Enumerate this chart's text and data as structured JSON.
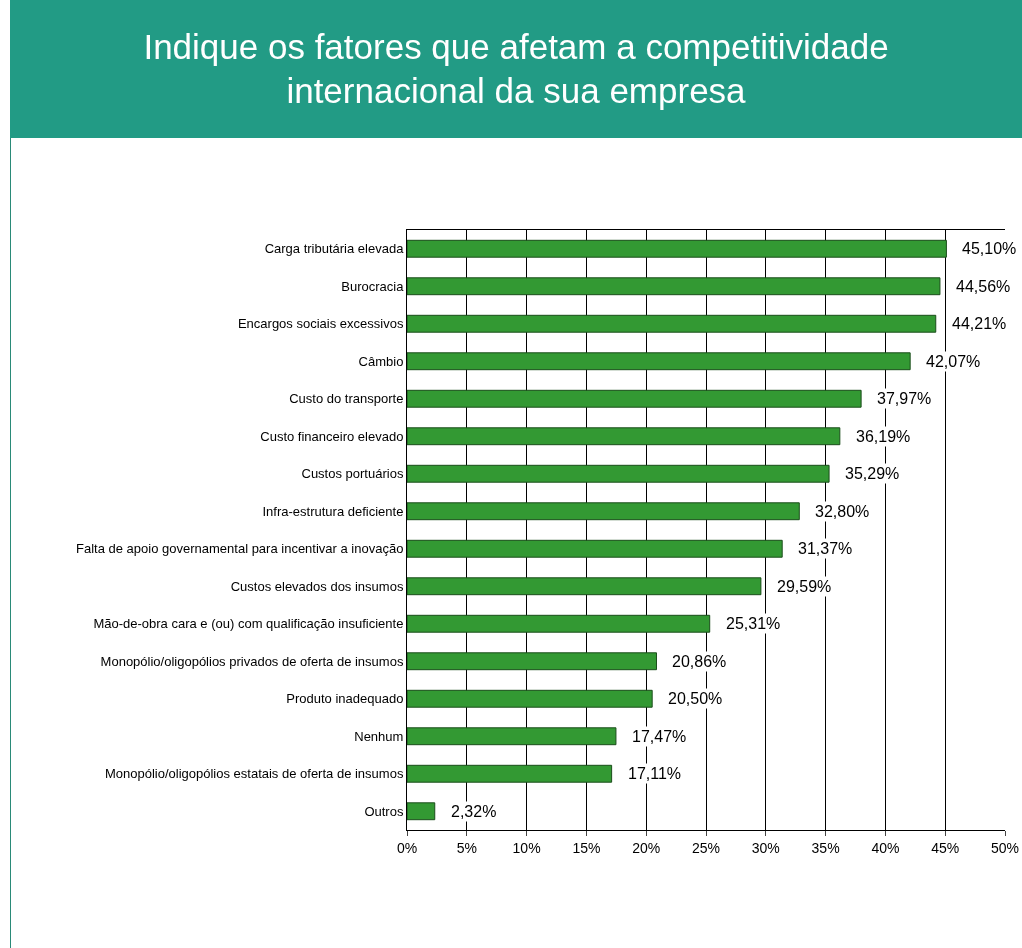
{
  "chart_data": {
    "type": "bar",
    "orientation": "horizontal",
    "title": "Indique os fatores que afetam a competitividade internacional da sua empresa",
    "categories": [
      "Carga tributária elevada",
      "Burocracia",
      "Encargos sociais excessivos",
      "Câmbio",
      "Custo do transporte",
      "Custo financeiro elevado",
      "Custos portuários",
      "Infra-estrutura deficiente",
      "Falta de apoio governamental para incentivar a inovação",
      "Custos elevados dos insumos",
      "Mão-de-obra cara e (ou) com qualificação insuficiente",
      "Monopólio/oligopólios privados de oferta de insumos",
      "Produto inadequado",
      "Nenhum",
      "Monopólio/oligopólios estatais de oferta de insumos",
      "Outros"
    ],
    "values": [
      45.1,
      44.56,
      44.21,
      42.07,
      37.97,
      36.19,
      35.29,
      32.8,
      31.37,
      29.59,
      25.31,
      20.86,
      20.5,
      17.47,
      17.11,
      2.32
    ],
    "value_labels": [
      "45,10%",
      "44,56%",
      "44,21%",
      "42,07%",
      "37,97%",
      "36,19%",
      "35,29%",
      "32,80%",
      "31,37%",
      "29,59%",
      "25,31%",
      "20,86%",
      "20,50%",
      "17,47%",
      "17,11%",
      "2,32%"
    ],
    "color": "#339933",
    "xlim": [
      0,
      50
    ],
    "xticks": [
      {
        "value": 0,
        "label": "0%"
      },
      {
        "value": 5,
        "label": "5%"
      },
      {
        "value": 10,
        "label": "10%"
      },
      {
        "value": 15,
        "label": "15%"
      },
      {
        "value": 20,
        "label": "20%"
      },
      {
        "value": 25,
        "label": "25%"
      },
      {
        "value": 30,
        "label": "30%"
      },
      {
        "value": 35,
        "label": "35%"
      },
      {
        "value": 40,
        "label": "40%"
      },
      {
        "value": 45,
        "label": "45%"
      },
      {
        "value": 50,
        "label": "50%"
      }
    ],
    "grid": "x"
  }
}
